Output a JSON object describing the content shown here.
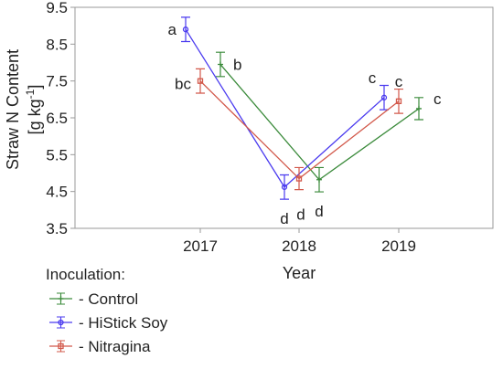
{
  "chart_data": {
    "type": "line",
    "title": "",
    "xlabel": "Year",
    "ylabel": "Straw N Content [g kg⁻¹]",
    "ylabel_line1": "Straw N Content",
    "ylabel_line2_base": "[g kg",
    "ylabel_line2_sup": "-1",
    "ylabel_line2_end": "]",
    "categories": [
      "2017",
      "2018",
      "2019"
    ],
    "ylim": [
      3.5,
      9.5
    ],
    "yticks": [
      "3.5",
      "4.5",
      "5.5",
      "6.5",
      "7.5",
      "8.5",
      "9.5"
    ],
    "grid": false,
    "error_bars": true,
    "series": [
      {
        "name": "- Control",
        "color": "#3a8a3a",
        "marker": "plus",
        "values": [
          7.95,
          4.82,
          6.75
        ],
        "errors": [
          0.33,
          0.33,
          0.3
        ],
        "labels": [
          "b",
          "d",
          "c"
        ]
      },
      {
        "name": "- HiStick Soy",
        "color": "#4a3aef",
        "marker": "circle",
        "values": [
          8.9,
          4.62,
          7.05
        ],
        "errors": [
          0.33,
          0.33,
          0.33
        ],
        "labels": [
          "a",
          "d",
          "c"
        ]
      },
      {
        "name": "- Nitragina",
        "color": "#d2584a",
        "marker": "square",
        "values": [
          7.5,
          4.85,
          6.95
        ],
        "errors": [
          0.33,
          0.3,
          0.33
        ],
        "labels": [
          "bc",
          "d",
          "c"
        ]
      }
    ],
    "legend": {
      "title": "Inoculation:",
      "placement": "bottom-left"
    }
  }
}
